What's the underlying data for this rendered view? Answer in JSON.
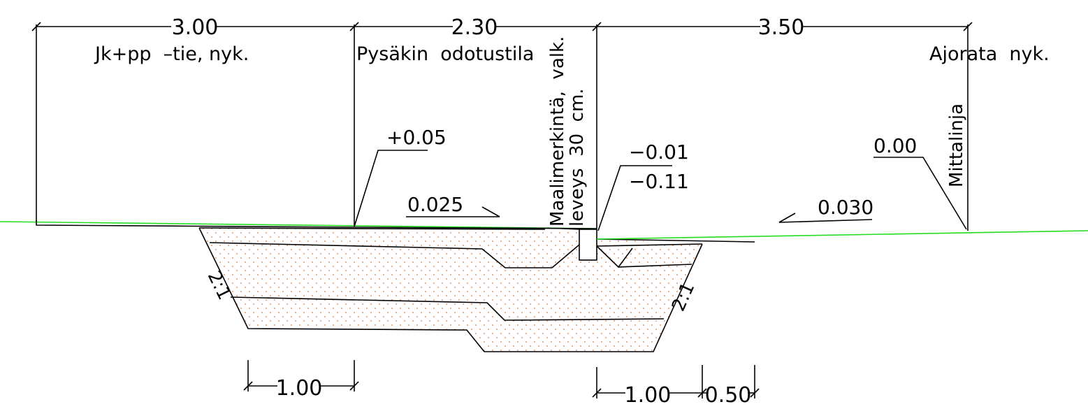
{
  "colors": {
    "background": "#ffffff",
    "lines": "#000000",
    "ground_line": "#22dd22",
    "fill_dots": "#e07a3a"
  },
  "top_dimensions": [
    {
      "value": "3.00"
    },
    {
      "value": "2.30"
    },
    {
      "value": "3.50"
    }
  ],
  "zones": {
    "cycle_path": "Jk+pp  –tie, nyk.",
    "waiting_area": "Pysäkin  odotustila",
    "carriageway": "Ajorata  nyk."
  },
  "marking_note": {
    "line1": "Maalimerkintä,  valk.",
    "line2": "leveys  30  cm."
  },
  "measurement_line_label": "Mittalinja",
  "elevations": {
    "waiting_area": "+0.05",
    "curb_top": "−0.01",
    "curb_bottom": "−0.11",
    "measurement_line": "0.00"
  },
  "slopes": {
    "left": "0.025",
    "right": "0.030"
  },
  "side_slopes": {
    "left": "2:1",
    "right": "2:1"
  },
  "bottom_dimensions": [
    {
      "value": "1.00"
    },
    {
      "value": "1.00"
    },
    {
      "value": "0.50"
    }
  ]
}
